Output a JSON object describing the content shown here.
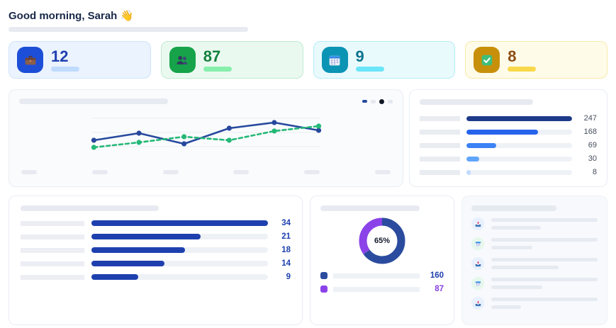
{
  "header": {
    "greeting": "Good morning, Sarah 👋"
  },
  "stat_cards": [
    {
      "id": "projects",
      "value": "12",
      "icon": "briefcase-icon",
      "bg": "#EBF3FE",
      "border": "#CFE3FB",
      "icon_bg": "#1D4ED8",
      "value_color": "#1E40AF",
      "pill_color": "#BFDBFE"
    },
    {
      "id": "people",
      "value": "87",
      "icon": "people-icon",
      "bg": "#EAF9F0",
      "border": "#BFEBD1",
      "icon_bg": "#16A34A",
      "value_color": "#15803D",
      "pill_color": "#86EFAC"
    },
    {
      "id": "calendar",
      "value": "9",
      "icon": "calendar-icon",
      "bg": "#E9FAFD",
      "border": "#B6ECF7",
      "icon_bg": "#0C94B4",
      "value_color": "#0E7490",
      "pill_color": "#6BE5F8"
    },
    {
      "id": "tasks",
      "value": "8",
      "icon": "check-icon",
      "bg": "#FEFBE9",
      "border": "#F8E9A8",
      "icon_bg": "#C8900A",
      "value_color": "#8D4D13",
      "pill_color": "#F9D84C"
    }
  ],
  "chart_data": [
    {
      "type": "line",
      "title": "",
      "x_placeholder_count": 6,
      "gridline_count": 3,
      "legend": [
        {
          "shape": "dash",
          "color": "#27499D"
        },
        {
          "shape": "dot",
          "color": "#111827"
        }
      ],
      "series": [
        {
          "name": "series-blue",
          "color": "#27499D",
          "dashed": false,
          "values": [
            26,
            36,
            21,
            43,
            51,
            40
          ]
        },
        {
          "name": "series-green",
          "color": "#25B877",
          "dashed": true,
          "values": [
            16,
            23,
            31,
            26,
            39,
            46
          ]
        }
      ],
      "note": "values estimated from pixel positions; axis labels are skeleton placeholders"
    },
    {
      "type": "bar",
      "orientation": "horizontal",
      "max": 247,
      "values": [
        247,
        168,
        69,
        30,
        8
      ],
      "bar_colors": [
        "#1E3A8A",
        "#2563EB",
        "#3B82F6",
        "#60A5FA",
        "#BFDBFE"
      ],
      "value_color": "#454D5C"
    },
    {
      "type": "bar",
      "orientation": "horizontal",
      "max": 34,
      "values": [
        34,
        21,
        18,
        14,
        9
      ],
      "bar_color": "#1E40AF",
      "value_color": "#1E40AF"
    },
    {
      "type": "donut",
      "center_label": "65%",
      "segments": [
        {
          "label_value": "160",
          "pct": 65,
          "color": "#2B4C9E",
          "value_color": "#1E40AF"
        },
        {
          "label_value": "87",
          "pct": 35,
          "color": "#8B42E8",
          "value_color": "#8440E0"
        }
      ]
    }
  ],
  "activity_list": {
    "items": [
      {
        "icon": "inbox-tray-icon",
        "circle_bg": "#E8F0FD"
      },
      {
        "icon": "calendar-icon",
        "circle_bg": "#E6F8EC"
      },
      {
        "icon": "inbox-tray-icon",
        "circle_bg": "#E8F0FD"
      },
      {
        "icon": "calendar-icon",
        "circle_bg": "#E6F8EC"
      },
      {
        "icon": "inbox-tray-icon",
        "circle_bg": "#E8F0FD"
      }
    ]
  }
}
